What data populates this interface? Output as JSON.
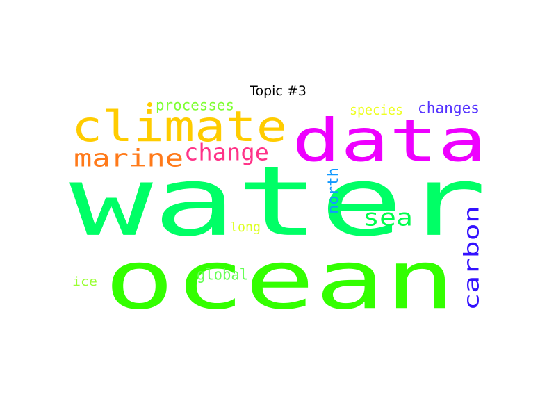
{
  "title": "Topic #3",
  "words": [
    {
      "text": "water",
      "color": "#00ff66"
    },
    {
      "text": "ocean",
      "color": "#33ff00"
    },
    {
      "text": "data",
      "color": "#ee00ff"
    },
    {
      "text": "climate",
      "color": "#ffcc00"
    },
    {
      "text": "marine",
      "color": "#ff7a1a"
    },
    {
      "text": "change",
      "color": "#ff3388"
    },
    {
      "text": "sea",
      "color": "#00ff4d"
    },
    {
      "text": "carbon",
      "color": "#3311ff"
    },
    {
      "text": "processes",
      "color": "#7fff33"
    },
    {
      "text": "species",
      "color": "#eeff22"
    },
    {
      "text": "changes",
      "color": "#5533ff"
    },
    {
      "text": "north",
      "color": "#1199ff"
    },
    {
      "text": "long",
      "color": "#ddff22"
    },
    {
      "text": "global",
      "color": "#66ff55"
    },
    {
      "text": "ice",
      "color": "#99ff33"
    }
  ],
  "dot": {
    "color": "#ffcc00"
  }
}
